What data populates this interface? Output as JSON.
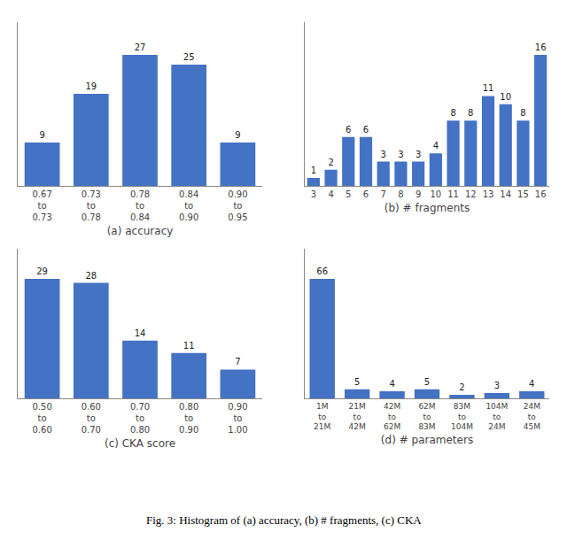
{
  "chart_data": [
    {
      "type": "bar",
      "xlabel": "(a) accuracy",
      "categories": [
        "0.67\nto\n0.73",
        "0.73\nto\n0.78",
        "0.78\nto\n0.84",
        "0.84\nto\n0.90",
        "0.90\nto\n0.95"
      ],
      "values": [
        9,
        19,
        27,
        25,
        9
      ],
      "color": "#4472c4",
      "ylim": [
        0,
        33.75
      ],
      "grid": false,
      "data_labels": true,
      "tick_labels": "x"
    },
    {
      "type": "bar",
      "xlabel": "(b) # fragments",
      "categories": [
        "3",
        "4",
        "5",
        "6",
        "7",
        "8",
        "9",
        "10",
        "11",
        "12",
        "13",
        "14",
        "15",
        "16"
      ],
      "values": [
        1,
        2,
        6,
        6,
        3,
        3,
        3,
        4,
        8,
        8,
        11,
        10,
        8,
        16
      ],
      "color": "#4472c4",
      "ylim": [
        0,
        20
      ],
      "grid": false,
      "data_labels": true,
      "tick_labels": "x"
    },
    {
      "type": "bar",
      "xlabel": "(c) CKA score",
      "categories": [
        "0.50\nto\n0.60",
        "0.60\nto\n0.70",
        "0.70\nto\n0.80",
        "0.80\nto\n0.90",
        "0.90\nto\n1.00"
      ],
      "values": [
        29,
        28,
        14,
        11,
        7
      ],
      "color": "#4472c4",
      "ylim": [
        0,
        36.25
      ],
      "grid": false,
      "data_labels": true,
      "tick_labels": "x"
    },
    {
      "type": "bar",
      "xlabel": "(d) # parameters",
      "categories": [
        "1M\nto\n21M",
        "21M\nto\n42M",
        "42M\nto\n62M",
        "62M\nto\n83M",
        "83M\nto\n104M",
        "104M\nto\n24M",
        "24M\nto\n45M"
      ],
      "values": [
        66,
        5,
        4,
        5,
        2,
        3,
        4
      ],
      "color": "#4472c4",
      "ylim": [
        0,
        82.5
      ],
      "grid": false,
      "data_labels": true,
      "tick_labels": "x"
    }
  ],
  "caption": "Fig. 3: Histogram of (a) accuracy, (b) # fragments, (c) CKA"
}
